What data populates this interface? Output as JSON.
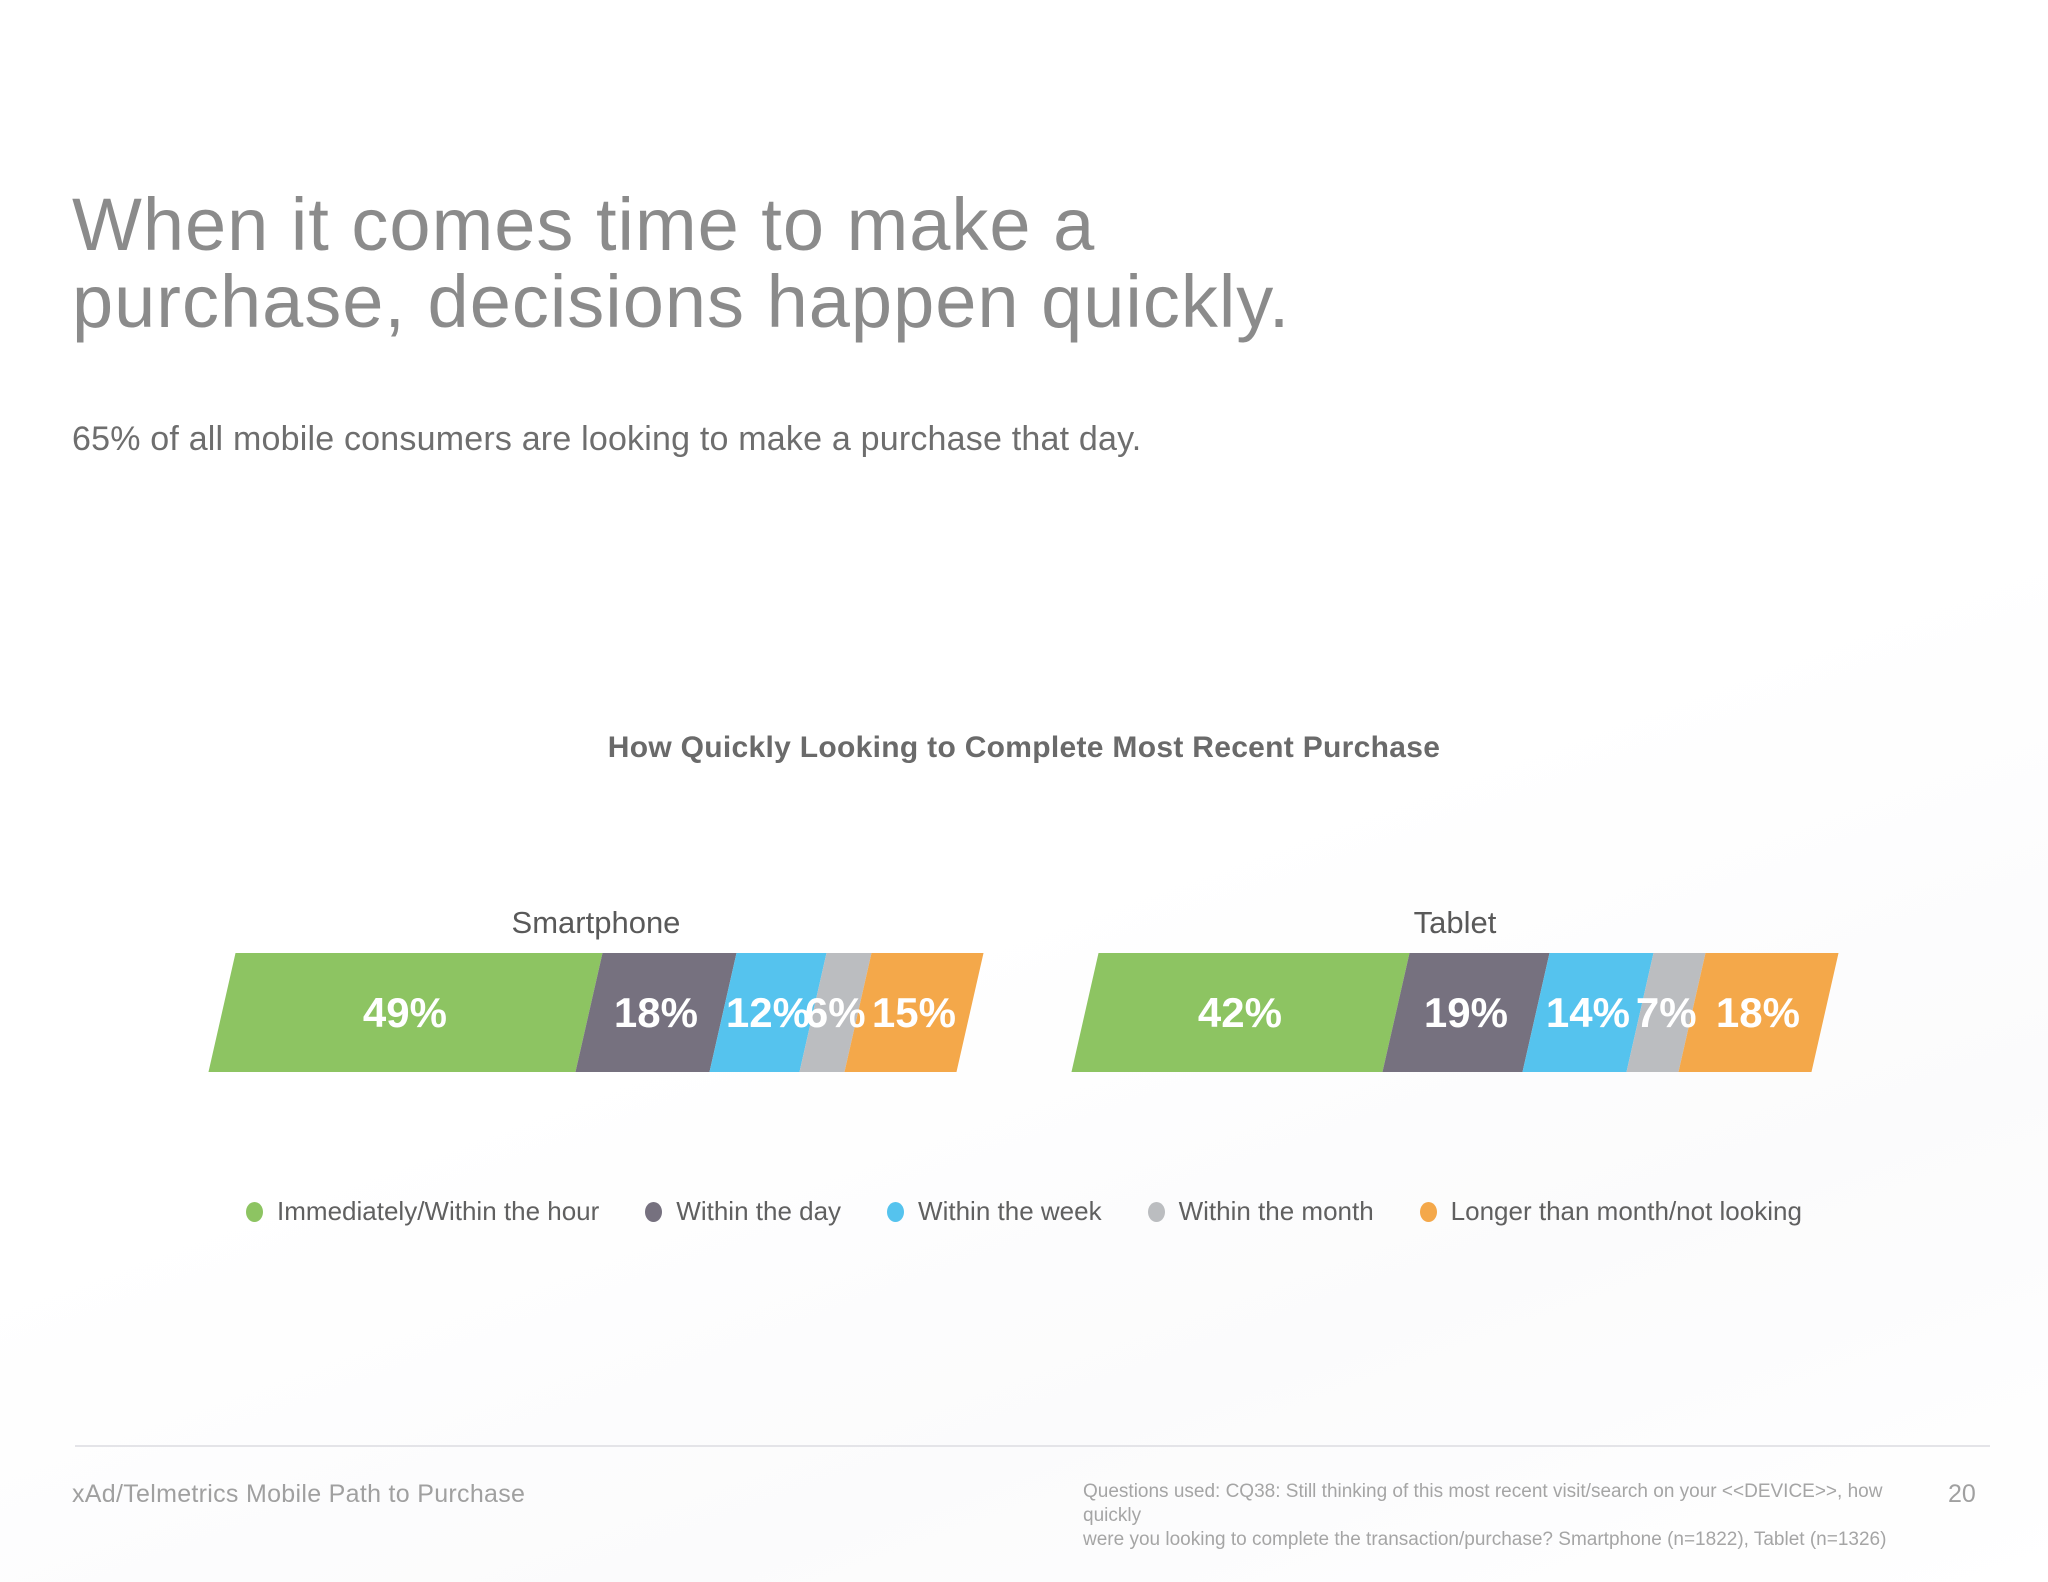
{
  "slide": {
    "title_line1": "When it comes time to make a",
    "title_line2": "purchase, decisions happen quickly.",
    "subtitle": "65% of all mobile consumers are looking to make a purchase that day.",
    "footer_left": "xAd/Telmetrics Mobile Path to Purchase",
    "footnote_line1": "Questions used: CQ38: Still thinking of this most recent visit/search on your <<DEVICE>>, how quickly",
    "footnote_line2": "were you looking to complete the transaction/purchase? Smartphone (n=1822), Tablet (n=1326)",
    "page_number": "20"
  },
  "chart_data": {
    "type": "bar",
    "subtype": "horizontal-stacked-percentage",
    "title": "How Quickly Looking to Complete Most Recent Purchase",
    "unit": "%",
    "categories": [
      "Smartphone",
      "Tablet"
    ],
    "series": [
      {
        "name": "Immediately/Within the hour",
        "color": "#8DC462",
        "values": [
          49,
          42
        ]
      },
      {
        "name": "Within the day",
        "color": "#76717F",
        "values": [
          18,
          19
        ]
      },
      {
        "name": "Within the week",
        "color": "#55C3EE",
        "values": [
          12,
          14
        ]
      },
      {
        "name": "Within the month",
        "color": "#BBBDC0",
        "values": [
          6,
          7
        ]
      },
      {
        "name": "Longer than month/not looking",
        "color": "#F4A84A",
        "values": [
          15,
          18
        ]
      }
    ],
    "value_labels": "inside-white-bold",
    "legend_position": "bottom",
    "bar_shape": "parallelogram-skewed",
    "xlim": [
      0,
      100
    ],
    "grid": false
  }
}
